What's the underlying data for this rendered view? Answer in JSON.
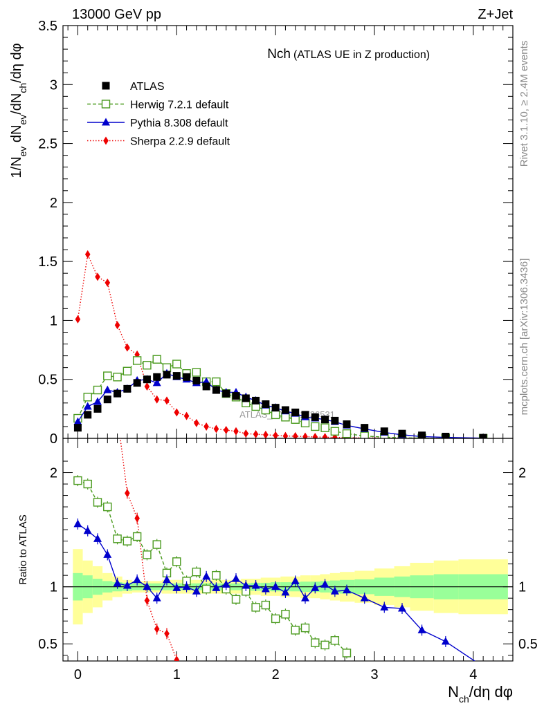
{
  "header": {
    "left": "13000 GeV pp",
    "right": "Z+Jet"
  },
  "side_labels": {
    "rivet": "Rivet 3.1.10, ≥ 2.4M events",
    "mcplots": "mcplots.cern.ch [arXiv:1306.3436]"
  },
  "chart_data": [
    {
      "type": "line",
      "title": "Nch",
      "subtitle": "(ATLAS UE in Z production)",
      "ylabel": "1/N_ev dN_ev/dN_ch/dη dφ",
      "watermark": "ATLAS_2019_I1736531",
      "xlim": [
        -0.15,
        4.4
      ],
      "ylim": [
        0,
        3.5
      ],
      "yticks": [
        0,
        0.5,
        1,
        1.5,
        2,
        2.5,
        3,
        3.5
      ],
      "ytick_labels": [
        "0",
        "0.5",
        "1",
        "1.5",
        "2",
        "2.5",
        "3",
        "3.5"
      ],
      "legend": [
        "ATLAS",
        "Herwig 7.2.1 default",
        "Pythia 8.308 default",
        "Sherpa 2.2.9 default"
      ],
      "legend_position": "top-left",
      "colors": {
        "data": "#000000",
        "herwig": "#4a9a1e",
        "pythia": "#0000cc",
        "sherpa": "#ee0000"
      },
      "series": [
        {
          "name": "ATLAS",
          "x": [
            0,
            0.1,
            0.2,
            0.3,
            0.4,
            0.5,
            0.6,
            0.7,
            0.8,
            0.9,
            1.0,
            1.1,
            1.2,
            1.3,
            1.4,
            1.5,
            1.6,
            1.7,
            1.8,
            1.9,
            2.0,
            2.1,
            2.2,
            2.3,
            2.4,
            2.5,
            2.6,
            2.72,
            2.9,
            3.1,
            3.28,
            3.48,
            3.72,
            4.1
          ],
          "y": [
            0.09,
            0.2,
            0.25,
            0.33,
            0.38,
            0.42,
            0.47,
            0.5,
            0.52,
            0.54,
            0.53,
            0.52,
            0.49,
            0.44,
            0.41,
            0.38,
            0.36,
            0.34,
            0.32,
            0.29,
            0.26,
            0.24,
            0.22,
            0.2,
            0.18,
            0.16,
            0.15,
            0.12,
            0.09,
            0.06,
            0.04,
            0.025,
            0.015,
            0.005
          ]
        },
        {
          "name": "Herwig 7.2.1 default",
          "x": [
            0,
            0.1,
            0.2,
            0.3,
            0.4,
            0.5,
            0.6,
            0.7,
            0.8,
            0.9,
            1.0,
            1.1,
            1.2,
            1.3,
            1.4,
            1.5,
            1.6,
            1.7,
            1.8,
            1.9,
            2.0,
            2.1,
            2.2,
            2.3,
            2.4,
            2.5,
            2.6,
            2.72,
            2.9,
            3.1,
            3.28,
            3.48,
            3.72,
            4.1
          ],
          "y": [
            0.17,
            0.35,
            0.41,
            0.53,
            0.52,
            0.57,
            0.66,
            0.62,
            0.67,
            0.6,
            0.63,
            0.55,
            0.56,
            0.48,
            0.48,
            0.38,
            0.35,
            0.3,
            0.27,
            0.24,
            0.2,
            0.18,
            0.16,
            0.13,
            0.1,
            0.09,
            0.06,
            0.04,
            0.02,
            0.01,
            0.005,
            0.002,
            0.001,
            0.0005
          ]
        },
        {
          "name": "Pythia 8.308 default",
          "x": [
            0,
            0.1,
            0.2,
            0.3,
            0.4,
            0.5,
            0.6,
            0.7,
            0.8,
            0.9,
            1.0,
            1.1,
            1.2,
            1.3,
            1.4,
            1.5,
            1.6,
            1.7,
            1.8,
            1.9,
            2.0,
            2.1,
            2.2,
            2.3,
            2.4,
            2.5,
            2.6,
            2.72,
            2.9,
            3.1,
            3.28,
            3.48,
            3.72,
            4.1
          ],
          "y": [
            0.14,
            0.27,
            0.31,
            0.41,
            0.39,
            0.42,
            0.49,
            0.5,
            0.47,
            0.55,
            0.52,
            0.5,
            0.47,
            0.48,
            0.41,
            0.39,
            0.39,
            0.35,
            0.32,
            0.28,
            0.26,
            0.23,
            0.21,
            0.18,
            0.17,
            0.16,
            0.14,
            0.11,
            0.08,
            0.05,
            0.03,
            0.015,
            0.008,
            0.002
          ]
        },
        {
          "name": "Sherpa 2.2.9 default",
          "x": [
            0,
            0.1,
            0.2,
            0.3,
            0.4,
            0.5,
            0.6,
            0.7,
            0.8,
            0.9,
            1.0,
            1.1,
            1.2,
            1.3,
            1.4,
            1.5,
            1.6,
            1.7,
            1.8,
            1.9,
            2.0,
            2.1,
            2.2,
            2.3,
            2.4,
            2.5,
            2.6,
            2.72,
            2.9,
            3.1,
            3.28,
            3.48,
            3.72,
            4.1
          ],
          "y": [
            1.01,
            1.56,
            1.37,
            1.32,
            0.96,
            0.77,
            0.71,
            0.44,
            0.33,
            0.32,
            0.22,
            0.19,
            0.13,
            0.1,
            0.08,
            0.07,
            0.06,
            0.04,
            0.035,
            0.03,
            0.025,
            0.02,
            0.018,
            0.015,
            0.012,
            0.01,
            0.008,
            0.006,
            0.004,
            0.003,
            0.002,
            0.001,
            0.001,
            0.0005
          ]
        }
      ]
    },
    {
      "type": "line",
      "ylabel": "Ratio to ATLAS",
      "xlabel": "N_ch/dη dφ",
      "xlim": [
        -0.15,
        4.4
      ],
      "ylim": [
        0.35,
        2.3
      ],
      "yticks": [
        0.5,
        1,
        2
      ],
      "ytick_labels": [
        "0.5",
        "1",
        "2"
      ],
      "xticks": [
        0,
        1,
        2,
        3,
        4
      ],
      "xtick_labels": [
        "0",
        "1",
        "2",
        "3",
        "4"
      ],
      "bands": {
        "bins": [
          -0.05,
          0.05,
          0.15,
          0.25,
          0.35,
          0.45,
          0.55,
          0.65,
          0.75,
          0.85,
          0.95,
          1.05,
          1.15,
          1.25,
          1.35,
          1.45,
          1.55,
          1.65,
          1.75,
          1.85,
          1.95,
          2.05,
          2.15,
          2.25,
          2.35,
          2.45,
          2.55,
          2.65,
          2.8,
          3.0,
          3.2,
          3.36,
          3.6,
          3.85,
          4.35
        ],
        "yellow_halfwidth": [
          0.33,
          0.23,
          0.18,
          0.12,
          0.09,
          0.06,
          0.05,
          0.05,
          0.05,
          0.06,
          0.06,
          0.06,
          0.06,
          0.06,
          0.06,
          0.06,
          0.06,
          0.07,
          0.07,
          0.08,
          0.08,
          0.09,
          0.09,
          0.1,
          0.1,
          0.11,
          0.12,
          0.13,
          0.14,
          0.16,
          0.18,
          0.21,
          0.23,
          0.24
        ],
        "green_halfwidth": [
          0.12,
          0.1,
          0.07,
          0.05,
          0.04,
          0.035,
          0.03,
          0.03,
          0.03,
          0.03,
          0.03,
          0.03,
          0.03,
          0.03,
          0.03,
          0.03,
          0.03,
          0.03,
          0.035,
          0.035,
          0.04,
          0.04,
          0.04,
          0.045,
          0.045,
          0.05,
          0.055,
          0.06,
          0.065,
          0.08,
          0.09,
          0.1,
          0.11,
          0.11
        ]
      },
      "series": [
        {
          "name": "Herwig 7.2.1 default",
          "x": [
            0,
            0.1,
            0.2,
            0.3,
            0.4,
            0.5,
            0.6,
            0.7,
            0.8,
            0.9,
            1.0,
            1.1,
            1.2,
            1.3,
            1.4,
            1.5,
            1.6,
            1.7,
            1.8,
            1.9,
            2.0,
            2.1,
            2.2,
            2.3,
            2.4,
            2.5,
            2.6,
            2.72
          ],
          "y": [
            1.93,
            1.9,
            1.74,
            1.7,
            1.42,
            1.4,
            1.44,
            1.28,
            1.37,
            1.12,
            1.22,
            1.05,
            1.13,
            0.98,
            1.1,
            0.98,
            0.89,
            0.96,
            0.82,
            0.84,
            0.72,
            0.76,
            0.62,
            0.64,
            0.51,
            0.49,
            0.53,
            0.42
          ]
        },
        {
          "name": "Pythia 8.308 default",
          "x": [
            0,
            0.1,
            0.2,
            0.3,
            0.4,
            0.5,
            0.6,
            0.7,
            0.8,
            0.9,
            1.0,
            1.1,
            1.2,
            1.3,
            1.4,
            1.5,
            1.6,
            1.7,
            1.8,
            1.9,
            2.0,
            2.1,
            2.2,
            2.3,
            2.4,
            2.5,
            2.6,
            2.72,
            2.9,
            3.1,
            3.28,
            3.48,
            3.72,
            4.1
          ],
          "y": [
            1.55,
            1.49,
            1.42,
            1.28,
            1.03,
            1.01,
            1.06,
            1.0,
            0.9,
            1.06,
            0.99,
            1.0,
            0.96,
            1.09,
            0.99,
            1.02,
            1.07,
            1.01,
            1.01,
            0.98,
            1.0,
            0.95,
            1.05,
            0.9,
            0.99,
            1.02,
            0.96,
            0.97,
            0.9,
            0.82,
            0.81,
            0.62,
            0.52,
            0.3
          ]
        },
        {
          "name": "Sherpa 2.2.9 default",
          "x": [
            0.4,
            0.5,
            0.6,
            0.7,
            0.8,
            0.9,
            1.0
          ],
          "y": [
            2.5,
            1.82,
            1.6,
            0.88,
            0.63,
            0.59,
            0.36
          ]
        }
      ]
    }
  ]
}
